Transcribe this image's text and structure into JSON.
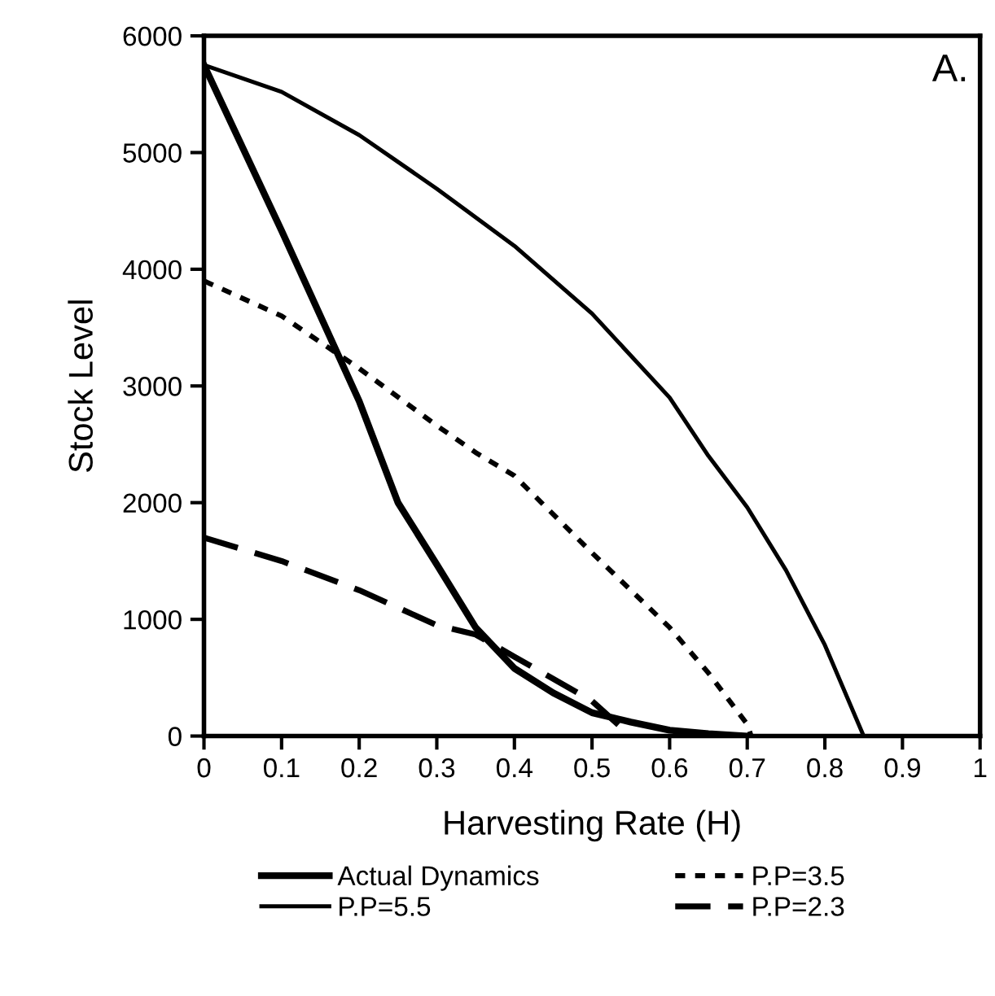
{
  "chart_data": {
    "type": "line",
    "xlabel": "Harvesting Rate (H)",
    "ylabel": "Stock Level",
    "annotations": [
      "A."
    ],
    "xlim": [
      0,
      1
    ],
    "xticks": [
      0,
      0.1,
      0.2,
      0.3,
      0.4,
      0.5,
      0.6,
      0.7,
      0.8,
      0.9,
      1
    ],
    "ylim": [
      0,
      6000
    ],
    "yticks": [
      0,
      1000,
      2000,
      3000,
      4000,
      5000,
      6000
    ],
    "grid": false,
    "legend": "bottom",
    "marker": "none",
    "series": [
      {
        "name": "Actual Dynamics",
        "color": "#000000",
        "line_style": "solid",
        "x": [
          0,
          0.05,
          0.1,
          0.15,
          0.2,
          0.25,
          0.3,
          0.35,
          0.4,
          0.45,
          0.5,
          0.55,
          0.6,
          0.65,
          0.7
        ],
        "values": [
          5750,
          5040,
          4330,
          3600,
          2870,
          2000,
          1470,
          930,
          580,
          370,
          200,
          120,
          50,
          20,
          0
        ]
      },
      {
        "name": "P.P=5.5",
        "color": "#000000",
        "line_style": "solid",
        "x": [
          0,
          0.1,
          0.2,
          0.3,
          0.4,
          0.5,
          0.6,
          0.65,
          0.7,
          0.75,
          0.8,
          0.85
        ],
        "values": [
          5750,
          5520,
          5150,
          4690,
          4200,
          3620,
          2900,
          2400,
          1960,
          1420,
          780,
          0
        ]
      },
      {
        "name": "P.P=3.5",
        "color": "#000000",
        "line_style": "dotted",
        "x": [
          0,
          0.1,
          0.2,
          0.3,
          0.35,
          0.4,
          0.5,
          0.6,
          0.65,
          0.7,
          0.705
        ],
        "values": [
          3900,
          3600,
          3150,
          2660,
          2430,
          2230,
          1570,
          930,
          540,
          100,
          0
        ]
      },
      {
        "name": "P.P=2.3",
        "color": "#000000",
        "line_style": "dashed",
        "x": [
          0,
          0.1,
          0.2,
          0.3,
          0.35,
          0.4,
          0.5,
          0.55
        ],
        "values": [
          1700,
          1500,
          1250,
          950,
          870,
          680,
          300,
          0
        ]
      }
    ]
  }
}
